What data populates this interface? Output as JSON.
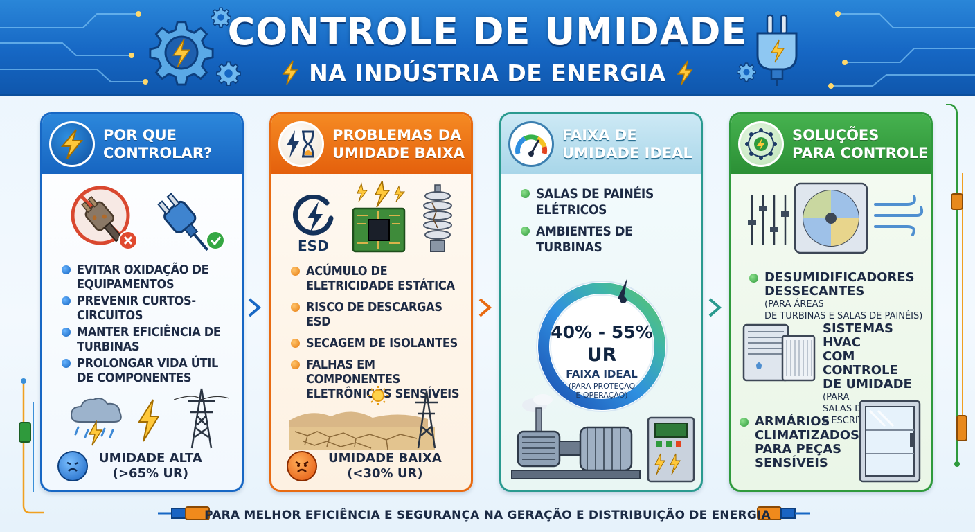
{
  "header": {
    "title": "CONTROLE DE UMIDADE",
    "subtitle": "NA INDÚSTRIA DE ENERGIA"
  },
  "panels": [
    {
      "title_line1": "POR QUE",
      "title_line2": "CONTROLAR?",
      "icon": "lightning-bolt-icon",
      "bullets": [
        "EVITAR OXIDAÇÃO DE EQUIPAMENTOS",
        "PREVENIR CURTOS-CIRCUITOS",
        "MANTER EFICIÊNCIA DE TURBINAS",
        "PROLONGAR VIDA ÚTIL DE COMPONENTES"
      ],
      "condition_line1": "UMIDADE ALTA",
      "condition_line2": "(>65% UR)"
    },
    {
      "title_line1": "PROBLEMAS DA",
      "title_line2": "UMIDADE BAIXA",
      "icon": "bolt-hourglass-icon",
      "esd_label": "ESD",
      "bullets": [
        "ACÚMULO DE ELETRICIDADE ESTÁTICA",
        "RISCO DE DESCARGAS ESD",
        "SECAGEM DE ISOLANTES",
        "FALHAS EM COMPONENTES ELETRÔNICOS SENSÍVEIS"
      ],
      "condition_line1": "UMIDADE BAIXA",
      "condition_line2": "(<30% UR)"
    },
    {
      "title_line1": "FAIXA DE",
      "title_line2": "UMIDADE IDEAL",
      "icon": "gauge-icon",
      "bullets": [
        "SALAS DE PAINÉIS ELÉTRICOS",
        "AMBIENTES DE TURBINAS"
      ],
      "gauge": {
        "range": "40% - 55%",
        "unit": "UR",
        "label": "FAIXA IDEAL",
        "note_line1": "(PARA PROTEÇÃO",
        "note_line2": "E OPERAÇÃO)"
      }
    },
    {
      "title_line1": "SOLUÇÕES",
      "title_line2": "PARA CONTROLE",
      "icon": "network-bolt-icon",
      "solutions": [
        {
          "title_lines": [
            "DESUMIDIFICADORES",
            "DESSECANTES"
          ],
          "note_inline": "(PARA ÁREAS",
          "note_rest": "DE TURBINAS E SALAS DE PAINÉIS)"
        },
        {
          "title_lines": [
            "SISTEMAS HVAC",
            "COM CONTROLE",
            "DE UMIDADE"
          ],
          "note_inline": "(PARA",
          "note_rest_lines": [
            "SALAS DE CONTROLE",
            "E ESCRITÓRIOS)"
          ]
        },
        {
          "title_lines": [
            "ARMÁRIOS",
            "CLIMATIZADOS",
            "PARA PEÇAS",
            "SENSÍVEIS"
          ]
        }
      ]
    }
  ],
  "footer": "PARA MELHOR EFICIÊNCIA E SEGURANÇA NA GERAÇÃO E DISTRIBUIÇÃO DE ENERGIA",
  "colors": {
    "header_blue": "#1667c4",
    "panel1": "#1767c4",
    "panel2": "#e86b12",
    "panel3": "#2a9a8f",
    "panel4": "#2f9a3c"
  }
}
